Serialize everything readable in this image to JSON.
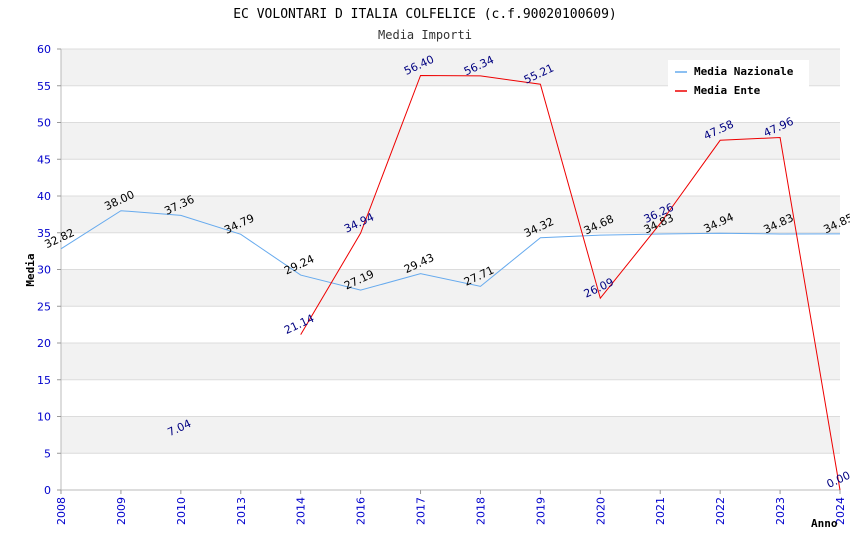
{
  "chart_data": {
    "type": "line",
    "title": "EC VOLONTARI D ITALIA COLFELICE (c.f.90020100609)",
    "subtitle": "Media Importi",
    "xlabel": "Anno",
    "ylabel": "Media",
    "ylim": [
      0,
      60
    ],
    "ytick_step": 5,
    "x": [
      "2008",
      "2009",
      "2010",
      "2013",
      "2014",
      "2016",
      "2017",
      "2018",
      "2019",
      "2020",
      "2021",
      "2022",
      "2023",
      "2024"
    ],
    "grid": true,
    "legend_position": "top-right",
    "series": [
      {
        "name": "Media Nazionale",
        "color": "#66aaee",
        "values": [
          32.82,
          38.0,
          37.36,
          34.79,
          29.24,
          27.19,
          29.43,
          27.71,
          34.32,
          34.68,
          34.83,
          34.94,
          34.83,
          34.85
        ],
        "labels": [
          "32.82",
          "38.00",
          "37.36",
          "34.79",
          "29.24",
          "27.19",
          "29.43",
          "27.71",
          "34.32",
          "34.68",
          "34.83",
          "34.94",
          "34.83",
          "34.85"
        ]
      },
      {
        "name": "Media Ente",
        "color": "#ee0000",
        "values": [
          null,
          null,
          7.04,
          null,
          21.14,
          34.94,
          56.4,
          56.34,
          55.21,
          26.09,
          36.26,
          47.58,
          47.96,
          0.0
        ],
        "labels": [
          null,
          null,
          "7.04",
          null,
          "21.14",
          "34.94",
          "56.40",
          "56.34",
          "55.21",
          "26.09",
          "36.26",
          "47.58",
          "47.96",
          "0.00"
        ],
        "line_from": "2014"
      }
    ]
  }
}
